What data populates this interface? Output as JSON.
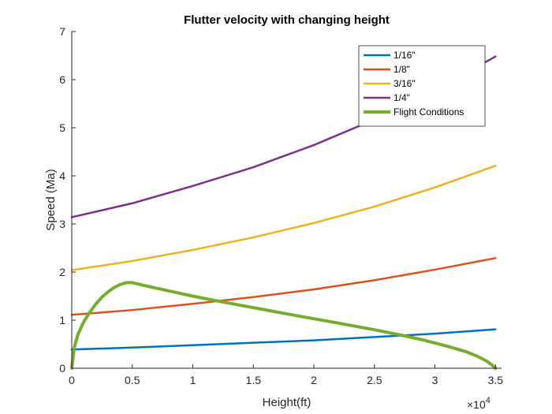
{
  "chart_data": {
    "type": "line",
    "title": "Flutter velocity with changing height",
    "xlabel": "Height(ft)",
    "ylabel": "Speed (Ma)",
    "xlim": [
      0,
      35500
    ],
    "ylim": [
      0,
      7
    ],
    "x_multiplier": {
      "base": "×10",
      "exponent": "4"
    },
    "x_ticks": [
      0,
      5000,
      10000,
      15000,
      20000,
      25000,
      30000,
      35000
    ],
    "x_tick_labels": [
      "0",
      "0.5",
      "1",
      "1.5",
      "2",
      "2.5",
      "3",
      "3.5"
    ],
    "y_ticks": [
      0,
      1,
      2,
      3,
      4,
      5,
      6,
      7
    ],
    "y_tick_labels": [
      "0",
      "1",
      "2",
      "3",
      "4",
      "5",
      "6",
      "7"
    ],
    "grid": false,
    "legend_position": "top-right",
    "series": [
      {
        "name": "1/16\"",
        "color": "#0072BD",
        "x": [
          0,
          5000,
          10000,
          15000,
          20000,
          25000,
          30000,
          35000
        ],
        "y": [
          0.39,
          0.43,
          0.48,
          0.53,
          0.58,
          0.65,
          0.72,
          0.81
        ]
      },
      {
        "name": "1/8\"",
        "color": "#D95319",
        "x": [
          0,
          5000,
          10000,
          15000,
          20000,
          25000,
          30000,
          35000
        ],
        "y": [
          1.11,
          1.21,
          1.34,
          1.48,
          1.64,
          1.83,
          2.05,
          2.29
        ]
      },
      {
        "name": "3/16\"",
        "color": "#EDB120",
        "x": [
          0,
          5000,
          10000,
          15000,
          20000,
          25000,
          30000,
          35000
        ],
        "y": [
          2.04,
          2.23,
          2.46,
          2.72,
          3.02,
          3.36,
          3.76,
          4.21
        ]
      },
      {
        "name": "1/4\"",
        "color": "#7E2F8E",
        "x": [
          0,
          5000,
          10000,
          15000,
          20000,
          25000,
          30000,
          35000
        ],
        "y": [
          3.14,
          3.43,
          3.79,
          4.18,
          4.64,
          5.17,
          5.78,
          6.48
        ]
      },
      {
        "name": "Flight Conditions",
        "color": "#77AC30",
        "thick": true,
        "x": [
          0,
          200,
          500,
          1000,
          1500,
          2000,
          2500,
          3000,
          3500,
          4000,
          4500,
          5000,
          6000,
          8000,
          10000,
          12000,
          15000,
          18000,
          20000,
          22000,
          25000,
          27000,
          29000,
          31000,
          32500,
          33500,
          34200,
          34700,
          35000
        ],
        "y": [
          0,
          0.42,
          0.7,
          0.97,
          1.17,
          1.34,
          1.48,
          1.59,
          1.68,
          1.74,
          1.78,
          1.78,
          1.72,
          1.61,
          1.5,
          1.4,
          1.26,
          1.12,
          1.03,
          0.94,
          0.8,
          0.7,
          0.59,
          0.46,
          0.35,
          0.25,
          0.16,
          0.07,
          0.0
        ]
      }
    ]
  }
}
